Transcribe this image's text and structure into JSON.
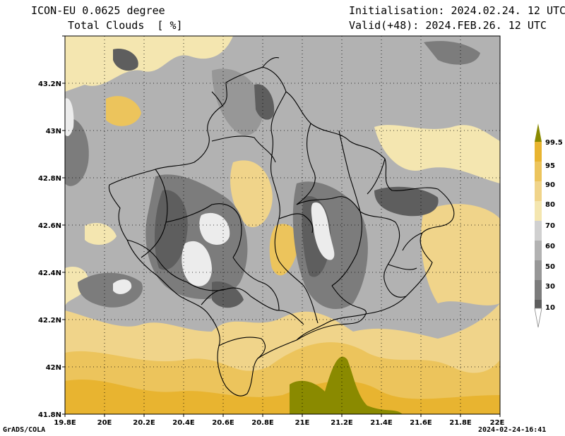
{
  "header": {
    "model": "ICON-EU 0.0625 degree",
    "variable": "Total Clouds  [ %]",
    "initialisation": "Initialisation: 2024.02.24. 12 UTC",
    "valid": "Valid(+48): 2024.FEB.26. 12 UTC"
  },
  "footer": {
    "credit": "GrADS/COLA",
    "timestamp": "2024-02-24-16:41"
  },
  "map": {
    "lon_range": [
      19.8,
      22.0
    ],
    "lat_range": [
      41.8,
      43.4
    ],
    "x_ticks": [
      "19.8E",
      "20E",
      "20.2E",
      "20.4E",
      "20.6E",
      "20.8E",
      "21E",
      "21.2E",
      "21.4E",
      "21.6E",
      "21.8E",
      "22E"
    ],
    "y_ticks": [
      "43.2N",
      "43N",
      "42.8N",
      "42.6N",
      "42.4N",
      "42.2N",
      "42N",
      "41.8N"
    ],
    "grid": "dotted"
  },
  "legend": {
    "placement": "right",
    "labels": [
      "99.5",
      "95",
      "90",
      "80",
      "70",
      "60",
      "50",
      "30",
      "10"
    ],
    "colors": [
      "#8a8a00",
      "#e8b430",
      "#ecc45c",
      "#f0d48a",
      "#f4e6b0",
      "#d0d0d0",
      "#b2b2b2",
      "#979797",
      "#7c7c7c",
      "#5e5e5e",
      "#ffffff"
    ]
  }
}
